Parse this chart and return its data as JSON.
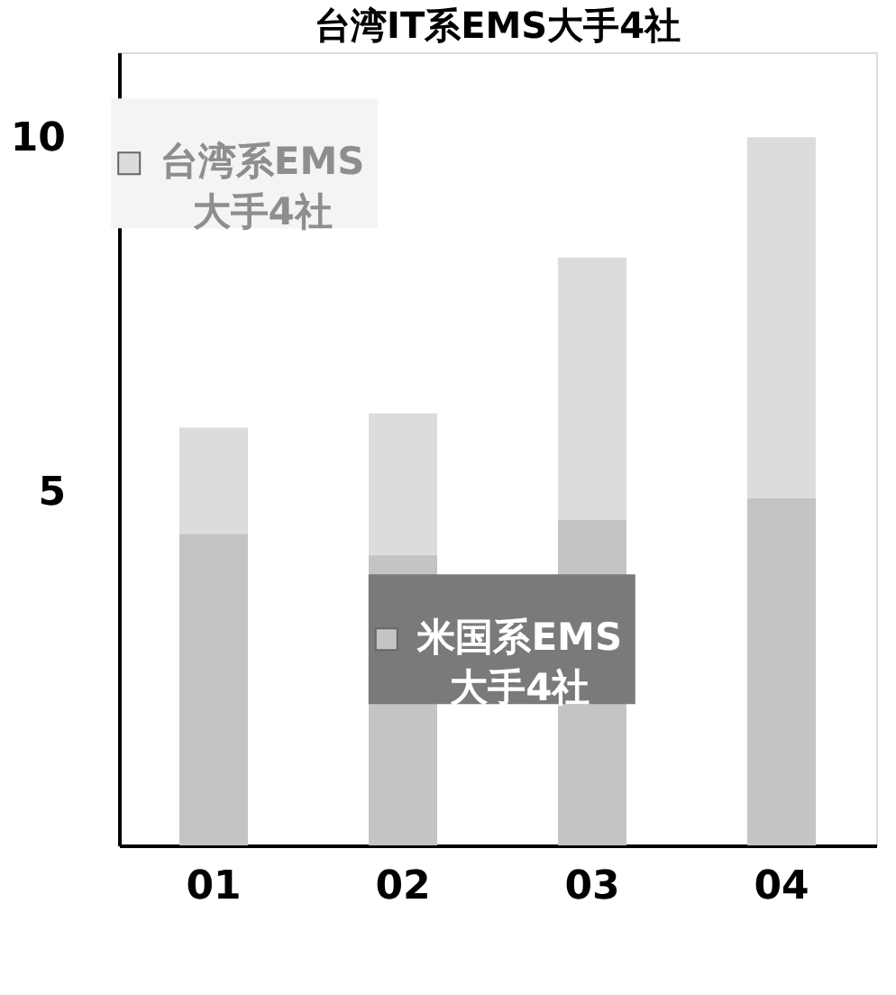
{
  "chart_data": {
    "type": "bar",
    "title": "台湾IT系EMS大手4社",
    "categories": [
      "01",
      "02",
      "03",
      "04"
    ],
    "stacked": true,
    "series": [
      {
        "name": "米国系EMS 大手4社",
        "color": "#c4c4c4",
        "values": [
          4.4,
          4.1,
          4.6,
          4.9
        ]
      },
      {
        "name": "台湾系EMS 大手4社",
        "color": "#dcdcdc",
        "values": [
          1.5,
          2.0,
          3.7,
          5.1
        ]
      }
    ],
    "ylim": [
      0,
      11.2
    ],
    "yticks": [
      5,
      10
    ],
    "grid": false,
    "legend": "top left"
  }
}
